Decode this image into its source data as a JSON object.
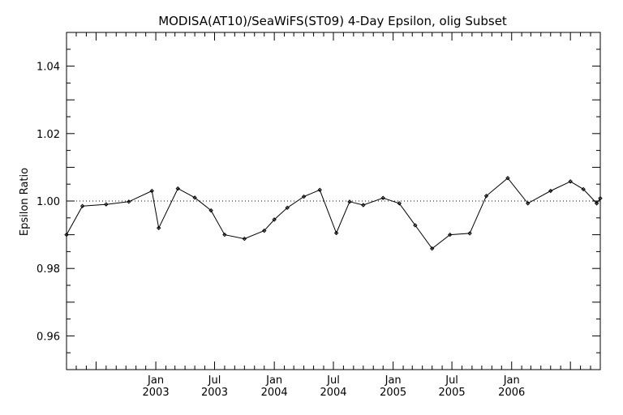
{
  "chart_data": {
    "type": "line",
    "title": "MODISA(AT10)/SeaWiFS(ST09) 4-Day Epsilon, olig Subset",
    "xlabel": "",
    "ylabel": "Epsilon Ratio",
    "ylim": [
      0.95,
      1.05
    ],
    "yticks": [
      0.96,
      0.98,
      1.0,
      1.02,
      1.04
    ],
    "ytick_labels": [
      "0.96",
      "0.98",
      "1.00",
      "1.02",
      "1.04"
    ],
    "xlim": [
      "2002-04-01",
      "2006-10-01"
    ],
    "xticks": [
      {
        "date": "2003-01-01",
        "line1": "Jan",
        "line2": "2003"
      },
      {
        "date": "2003-07-01",
        "line1": "Jul",
        "line2": "2003"
      },
      {
        "date": "2004-01-01",
        "line1": "Jan",
        "line2": "2004"
      },
      {
        "date": "2004-07-01",
        "line1": "Jul",
        "line2": "2004"
      },
      {
        "date": "2005-01-01",
        "line1": "Jan",
        "line2": "2005"
      },
      {
        "date": "2005-07-01",
        "line1": "Jul",
        "line2": "2005"
      },
      {
        "date": "2006-01-01",
        "line1": "Jan",
        "line2": "2006"
      }
    ],
    "reference_line": {
      "y": 1.0,
      "style": "dotted"
    },
    "grid": false,
    "series": [
      {
        "color": "#000000",
        "x": [
          "2002-04-01",
          "2002-05-20",
          "2002-08-01",
          "2002-10-10",
          "2002-12-20",
          "2003-01-10",
          "2003-03-10",
          "2003-05-01",
          "2003-06-20",
          "2003-08-01",
          "2003-10-01",
          "2003-12-01",
          "2004-01-01",
          "2004-02-10",
          "2004-04-01",
          "2004-05-20",
          "2004-07-10",
          "2004-08-20",
          "2004-10-01",
          "2004-12-01",
          "2005-01-20",
          "2005-03-10",
          "2005-05-01",
          "2005-06-25",
          "2005-08-25",
          "2005-10-15",
          "2005-12-20",
          "2006-02-20",
          "2006-05-01",
          "2006-07-01",
          "2006-08-10",
          "2006-09-20",
          "2006-10-01"
        ],
        "y": [
          0.99,
          0.9985,
          0.999,
          0.9998,
          1.003,
          0.992,
          1.0037,
          1.001,
          0.9972,
          0.99,
          0.9888,
          0.9912,
          0.9945,
          0.998,
          1.0013,
          1.0033,
          0.9905,
          0.9998,
          0.9988,
          1.0009,
          0.9993,
          0.9928,
          0.9859,
          0.99,
          0.9904,
          1.0015,
          1.0068,
          0.9993,
          1.003,
          1.0058,
          1.0035,
          0.9993,
          1.0008
        ]
      }
    ]
  }
}
